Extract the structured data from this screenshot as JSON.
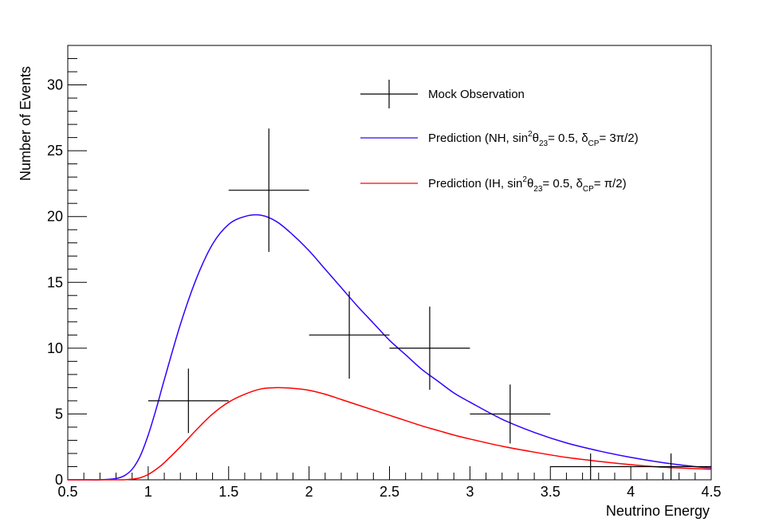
{
  "chart_data": {
    "type": "line",
    "title": "",
    "xlabel": "Neutrino Energy",
    "ylabel": "Number of Events",
    "xlim": [
      0.5,
      4.5
    ],
    "ylim": [
      0,
      33
    ],
    "x_ticks": [
      "0.5",
      "1",
      "1.5",
      "2",
      "2.5",
      "3",
      "3.5",
      "4",
      "4.5"
    ],
    "y_ticks": [
      "0",
      "5",
      "10",
      "15",
      "20",
      "25",
      "30"
    ],
    "grid": false,
    "legend_position": "top-right",
    "series": [
      {
        "name": "Mock Observation",
        "kind": "errorbars",
        "color": "#000000",
        "points": [
          {
            "x": 1.25,
            "xerr": 0.25,
            "y": 6,
            "yerr": 2.45
          },
          {
            "x": 1.75,
            "xerr": 0.25,
            "y": 22,
            "yerr": 4.69
          },
          {
            "x": 2.25,
            "xerr": 0.25,
            "y": 11,
            "yerr": 3.32
          },
          {
            "x": 2.75,
            "xerr": 0.25,
            "y": 10,
            "yerr": 3.16
          },
          {
            "x": 3.25,
            "xerr": 0.25,
            "y": 5,
            "yerr": 2.24
          },
          {
            "x": 3.75,
            "xerr": 0.25,
            "y": 1,
            "yerr": 1.0
          },
          {
            "x": 4.25,
            "xerr": 0.25,
            "y": 1,
            "yerr": 1.0
          }
        ]
      },
      {
        "name": "Prediction (NH, sin²θ23= 0.5, δCP= 3π/2)",
        "legend_parts": {
          "pre": "Prediction (NH, sin",
          "sup": "2",
          "theta": "θ",
          "sub1": "23",
          "mid": "= 0.5, δ",
          "sub2": "CP",
          "post": "= 3π/2)"
        },
        "kind": "curve",
        "color": "#3300ff",
        "x": [
          0.5,
          0.6,
          0.7,
          0.8,
          0.85,
          0.9,
          0.95,
          1.0,
          1.05,
          1.1,
          1.2,
          1.3,
          1.4,
          1.5,
          1.6,
          1.7,
          1.8,
          1.9,
          2.0,
          2.1,
          2.2,
          2.3,
          2.4,
          2.5,
          2.6,
          2.7,
          2.8,
          2.9,
          3.0,
          3.2,
          3.4,
          3.6,
          3.8,
          4.0,
          4.2,
          4.4,
          4.5
        ],
        "values": [
          0.0,
          0.0,
          0.0,
          0.1,
          0.3,
          0.8,
          1.8,
          3.4,
          5.4,
          7.6,
          11.8,
          15.3,
          17.9,
          19.4,
          20.0,
          20.1,
          19.6,
          18.6,
          17.4,
          16.0,
          14.6,
          13.2,
          11.9,
          10.6,
          9.5,
          8.4,
          7.5,
          6.6,
          5.9,
          4.6,
          3.6,
          2.8,
          2.2,
          1.7,
          1.3,
          1.0,
          0.9
        ]
      },
      {
        "name": "Prediction (IH, sin²θ23= 0.5, δCP= π/2)",
        "legend_parts": {
          "pre": "Prediction (IH, sin",
          "sup": "2",
          "theta": "θ",
          "sub1": "23",
          "mid": "= 0.5, δ",
          "sub2": "CP",
          "post": "= π/2)"
        },
        "kind": "curve",
        "color": "#ff0000",
        "x": [
          0.5,
          0.6,
          0.7,
          0.8,
          0.85,
          0.9,
          0.95,
          1.0,
          1.05,
          1.1,
          1.2,
          1.3,
          1.4,
          1.5,
          1.6,
          1.7,
          1.8,
          1.9,
          2.0,
          2.1,
          2.2,
          2.3,
          2.4,
          2.5,
          2.6,
          2.7,
          2.8,
          2.9,
          3.0,
          3.2,
          3.4,
          3.6,
          3.8,
          4.0,
          4.2,
          4.4,
          4.5
        ],
        "values": [
          0.0,
          0.0,
          0.0,
          0.0,
          0.0,
          0.05,
          0.15,
          0.4,
          0.8,
          1.3,
          2.5,
          3.8,
          5.0,
          5.9,
          6.5,
          6.9,
          7.0,
          6.95,
          6.8,
          6.5,
          6.1,
          5.7,
          5.3,
          4.9,
          4.5,
          4.1,
          3.75,
          3.4,
          3.1,
          2.55,
          2.1,
          1.7,
          1.4,
          1.15,
          0.95,
          0.85,
          0.8
        ]
      }
    ]
  }
}
